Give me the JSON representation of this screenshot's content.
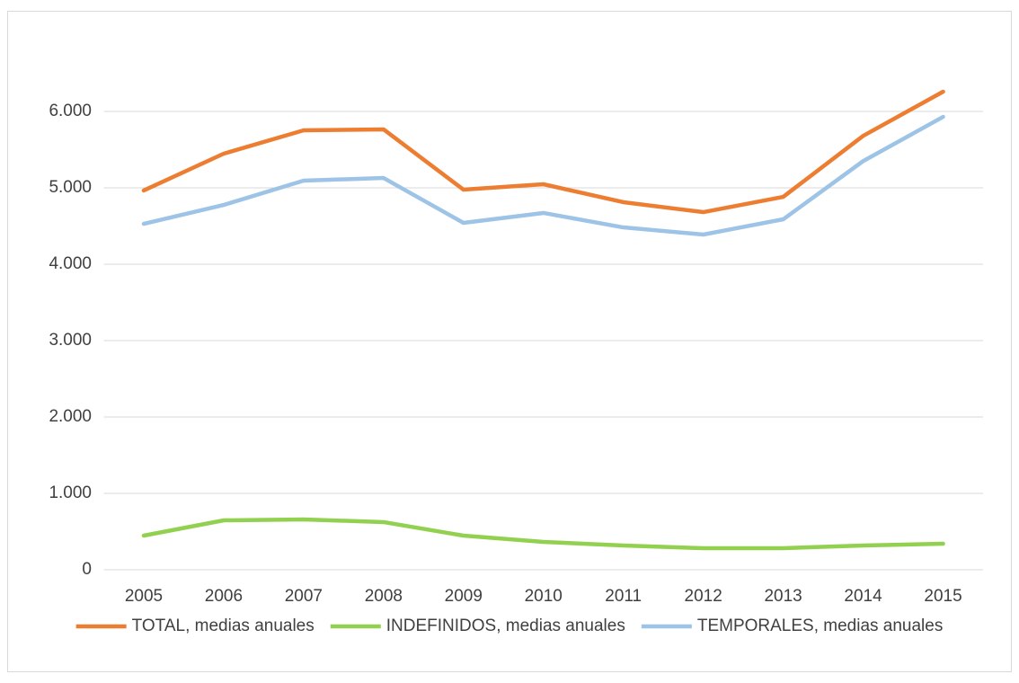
{
  "chart_data": {
    "type": "line",
    "categories": [
      "2005",
      "2006",
      "2007",
      "2008",
      "2009",
      "2010",
      "2011",
      "2012",
      "2013",
      "2014",
      "2015"
    ],
    "series": [
      {
        "name": "TOTAL, medias anuales",
        "color": "#ed7d31",
        "values": [
          4965,
          5447,
          5753,
          5765,
          4976,
          5047,
          4812,
          4682,
          4882,
          5680,
          6259
        ]
      },
      {
        "name": "INDEFINIDOS, medias anuales",
        "color": "#92d050",
        "values": [
          447,
          647,
          659,
          624,
          447,
          365,
          318,
          282,
          282,
          318,
          341
        ]
      },
      {
        "name": "TEMPORALES, medias anuales",
        "color": "#9dc3e6",
        "values": [
          4529,
          4776,
          5094,
          5129,
          4541,
          4671,
          4482,
          4388,
          4588,
          5350,
          5929
        ]
      }
    ],
    "ylim": [
      0,
      7000
    ],
    "yticks": [
      0,
      {
        "value": 1000,
        "label": "1.000"
      },
      {
        "value": 2000,
        "label": "2.000"
      },
      {
        "value": 3000,
        "label": "3.000"
      },
      {
        "value": 4000,
        "label": "4.000"
      },
      {
        "value": 5000,
        "label": "5.000"
      },
      {
        "value": 6000,
        "label": "6.000"
      }
    ],
    "grid": true,
    "legend": "bottom"
  }
}
